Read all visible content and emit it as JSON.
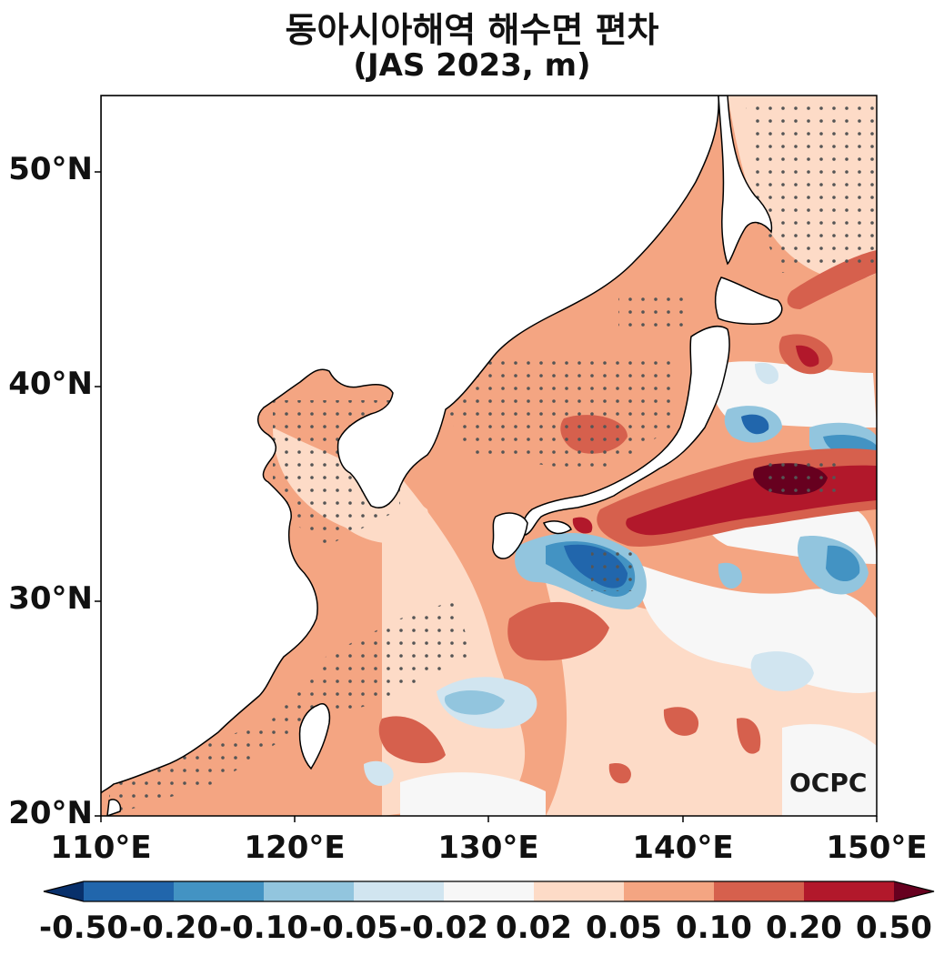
{
  "title": "동아시아해역 해수면 편차",
  "subtitle": "(JAS 2023, m)",
  "watermark": "OCPC",
  "y_ticks": [
    "50°N",
    "40°N",
    "30°N",
    "20°N"
  ],
  "x_ticks": [
    "110°E",
    "120°E",
    "130°E",
    "140°E",
    "150°E"
  ],
  "colorbar": {
    "labels": [
      "-0.50",
      "-0.20",
      "-0.10",
      "-0.05",
      "-0.02",
      "0.02",
      "0.05",
      "0.10",
      "0.20",
      "0.50"
    ],
    "colors": [
      "#08306b",
      "#2166ac",
      "#4393c3",
      "#92c5de",
      "#d1e5f0",
      "#f7f7f7",
      "#fddbc7",
      "#f4a582",
      "#d6604d",
      "#b2182b",
      "#67001f"
    ]
  },
  "map": {
    "lon_range": [
      110,
      150
    ],
    "lat_range": [
      20,
      53.5
    ],
    "ocean_color": "#f4a582",
    "land_color": "#ffffff",
    "coast_color": "#000000"
  }
}
